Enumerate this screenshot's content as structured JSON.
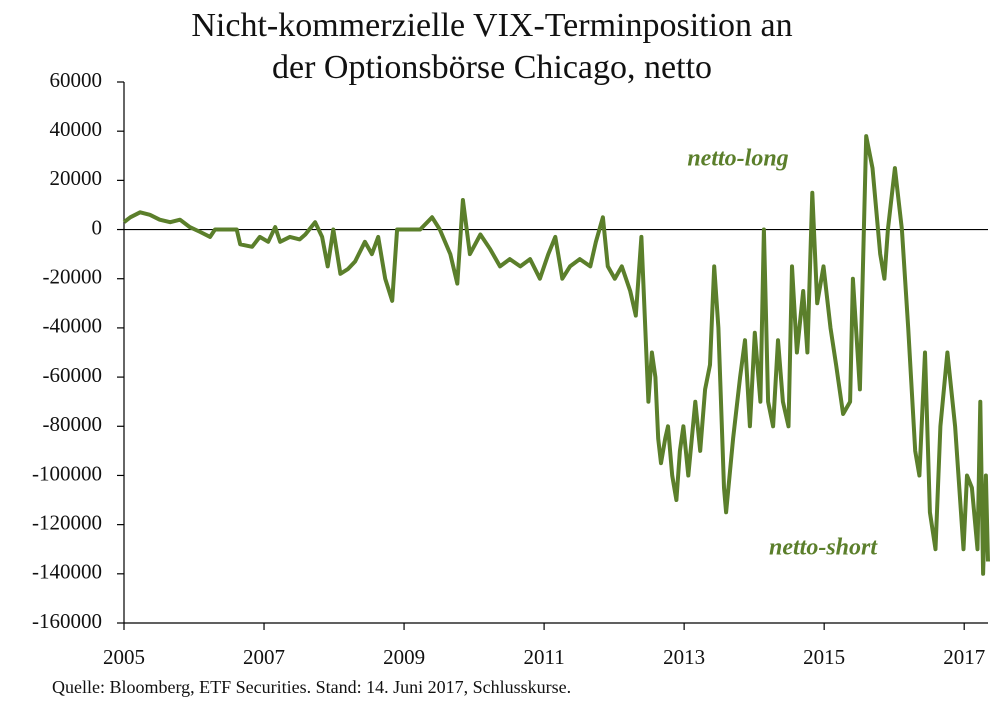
{
  "chart_data": {
    "type": "line",
    "title": [
      "Nicht-kommerzielle VIX-Terminposition an",
      "der Optionsbörse Chicago, netto"
    ],
    "annotations": [
      "netto-long",
      "netto-short"
    ],
    "source": "Quelle: Bloomberg, ETF Securities. Stand: 14. Juni 2017, Schlusskurse.",
    "color": "#5b7f2b",
    "xlim": [
      2005,
      2017.34
    ],
    "xticks": [
      2005,
      2007,
      2009,
      2011,
      2013,
      2015,
      2017
    ],
    "ylim": [
      -160000,
      60000
    ],
    "yticks": [
      60000,
      40000,
      20000,
      0,
      -20000,
      -40000,
      -60000,
      -80000,
      -100000,
      -120000,
      -140000,
      -160000
    ],
    "x": [
      2005.0,
      2005.09,
      2005.23,
      2005.37,
      2005.51,
      2005.66,
      2005.8,
      2005.94,
      2006.09,
      2006.23,
      2006.3,
      2006.44,
      2006.61,
      2006.66,
      2006.83,
      2006.94,
      2007.06,
      2007.16,
      2007.23,
      2007.37,
      2007.51,
      2007.59,
      2007.73,
      2007.83,
      2007.91,
      2007.99,
      2008.09,
      2008.2,
      2008.3,
      2008.44,
      2008.54,
      2008.63,
      2008.73,
      2008.83,
      2008.9,
      2009.09,
      2009.23,
      2009.4,
      2009.51,
      2009.66,
      2009.76,
      2009.84,
      2009.94,
      2010.09,
      2010.23,
      2010.37,
      2010.51,
      2010.66,
      2010.8,
      2010.94,
      2011.06,
      2011.16,
      2011.26,
      2011.37,
      2011.51,
      2011.66,
      2011.74,
      2011.84,
      2011.91,
      2012.01,
      2012.11,
      2012.23,
      2012.31,
      2012.39,
      2012.49,
      2012.54,
      2012.59,
      2012.63,
      2012.67,
      2012.73,
      2012.77,
      2012.83,
      2012.89,
      2012.94,
      2012.99,
      2013.06,
      2013.16,
      2013.23,
      2013.3,
      2013.37,
      2013.43,
      2013.49,
      2013.57,
      2013.6,
      2013.7,
      2013.8,
      2013.87,
      2013.94,
      2014.01,
      2014.09,
      2014.14,
      2014.2,
      2014.27,
      2014.34,
      2014.41,
      2014.49,
      2014.54,
      2014.61,
      2014.7,
      2014.76,
      2014.83,
      2014.9,
      2014.99,
      2015.09,
      2015.17,
      2015.27,
      2015.37,
      2015.41,
      2015.51,
      2015.6,
      2015.69,
      2015.8,
      2015.86,
      2015.91,
      2016.01,
      2016.11,
      2016.2,
      2016.3,
      2016.36,
      2016.44,
      2016.51,
      2016.59,
      2016.66,
      2016.76,
      2016.87,
      2016.99,
      2017.04,
      2017.11,
      2017.19,
      2017.23,
      2017.27,
      2017.31,
      2017.34
    ],
    "series": [
      {
        "values": [
          3000,
          5000,
          7000,
          6000,
          4000,
          3000,
          4000,
          1000,
          -1000,
          -3000,
          0,
          0,
          0,
          -6000,
          -7000,
          -3000,
          -5000,
          1000,
          -5000,
          -3000,
          -4000,
          -2000,
          3000,
          -3000,
          -15000,
          0,
          -18000,
          -16000,
          -13000,
          -5000,
          -10000,
          -3000,
          -20000,
          -29000,
          0,
          0,
          0,
          5000,
          0,
          -10000,
          -22000,
          12000,
          -10000,
          -2000,
          -8000,
          -15000,
          -12000,
          -15000,
          -12000,
          -20000,
          -10000,
          -3000,
          -20000,
          -15000,
          -12000,
          -15000,
          -5000,
          5000,
          -15000,
          -20000,
          -15000,
          -25000,
          -35000,
          -3000,
          -70000,
          -50000,
          -60000,
          -85000,
          -95000,
          -85000,
          -80000,
          -100000,
          -110000,
          -90000,
          -80000,
          -100000,
          -70000,
          -90000,
          -65000,
          -55000,
          -15000,
          -40000,
          -105000,
          -115000,
          -85000,
          -60000,
          -45000,
          -80000,
          -42000,
          -70000,
          0,
          -70000,
          -80000,
          -45000,
          -70000,
          -80000,
          -15000,
          -50000,
          -25000,
          -50000,
          15000,
          -30000,
          -15000,
          -40000,
          -55000,
          -75000,
          -70000,
          -20000,
          -65000,
          38000,
          25000,
          -10000,
          -20000,
          0,
          25000,
          0,
          -40000,
          -90000,
          -100000,
          -50000,
          -115000,
          -130000,
          -80000,
          -50000,
          -80000,
          -130000,
          -100000,
          -105000,
          -130000,
          -70000,
          -140000,
          -100000,
          -135000
        ]
      }
    ]
  }
}
